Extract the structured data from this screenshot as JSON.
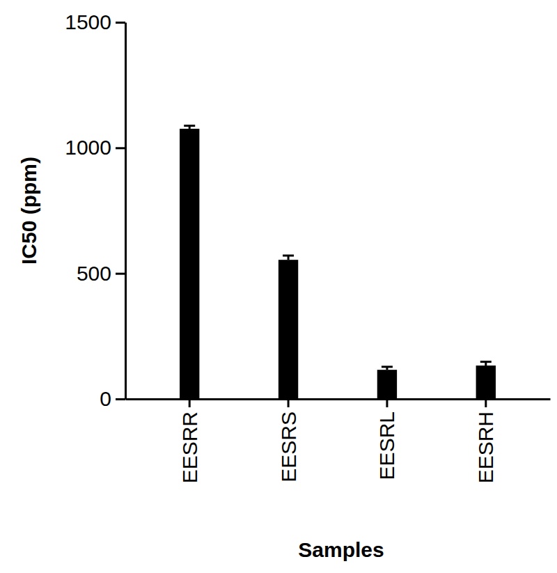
{
  "chart_data": {
    "type": "bar",
    "x_label": "Samples",
    "y_label": "IC50 (ppm)",
    "categories": [
      "EESRR",
      "EESRS",
      "EESRL",
      "EESRH"
    ],
    "values": [
      1076,
      554,
      116,
      133
    ],
    "errors": [
      12,
      17,
      12,
      15
    ],
    "color": "#000000",
    "ylim": [
      0,
      1500
    ],
    "yticks": [
      0,
      500,
      1000,
      1500
    ],
    "grid": false
  }
}
